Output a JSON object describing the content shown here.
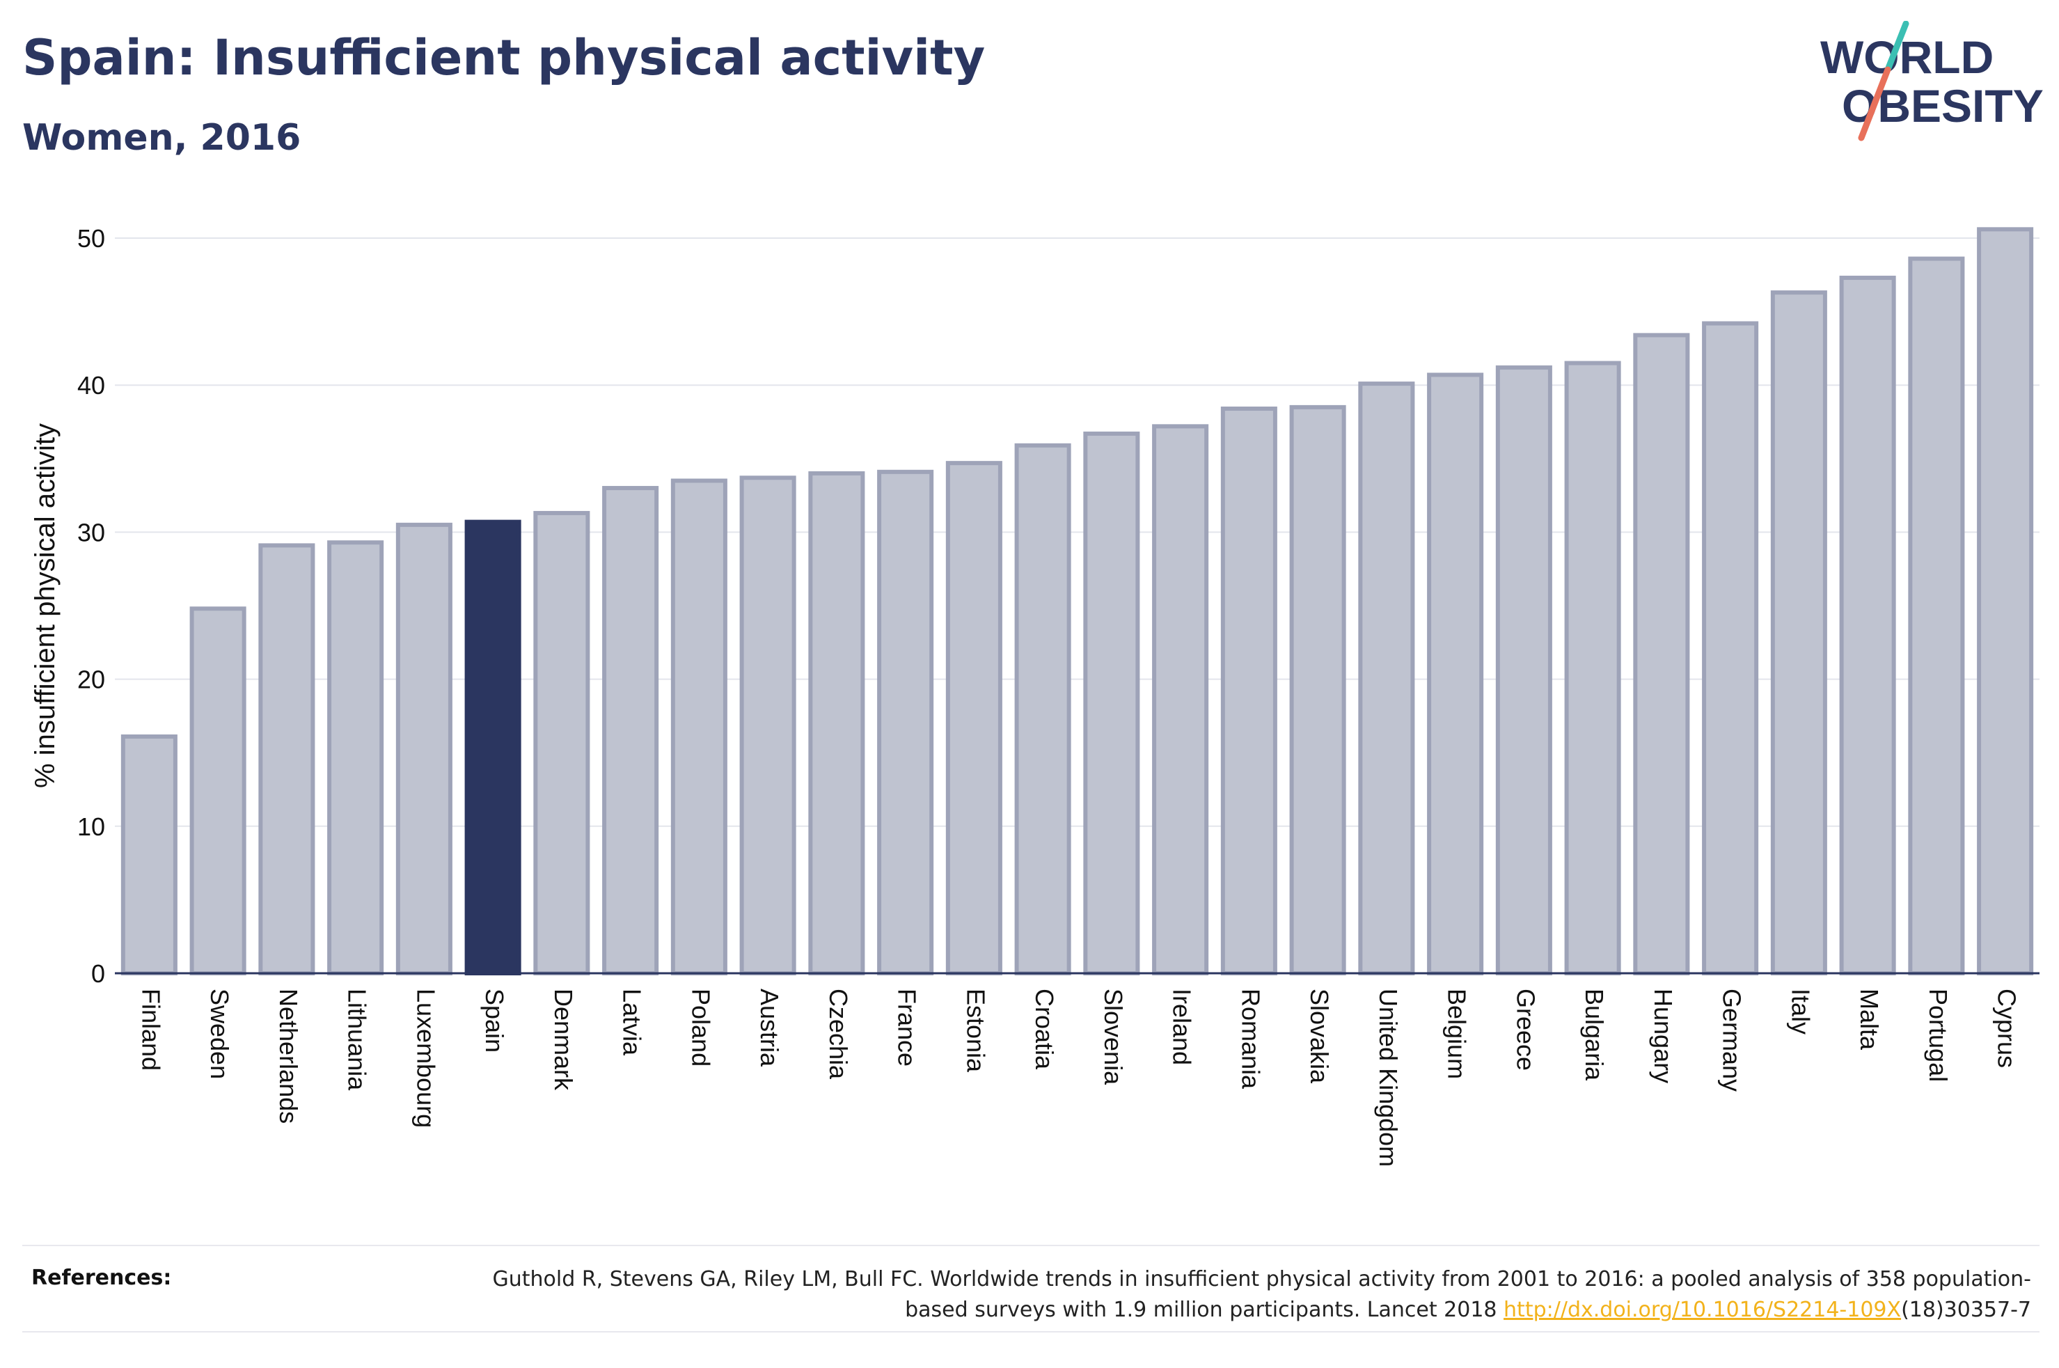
{
  "header": {
    "title": "Spain: Insufficient physical activity",
    "subtitle": "Women, 2016"
  },
  "logo": {
    "line1": "WORLD",
    "line2": "OBESITY",
    "accent_teal": "#3bbfb3",
    "accent_red": "#e8705a",
    "text_color": "#2b3660"
  },
  "chart_data": {
    "type": "bar",
    "ylabel": "% insufficient physical activity",
    "xlabel": "",
    "ylim": [
      0,
      52
    ],
    "yticks": [
      0,
      10,
      20,
      30,
      40,
      50
    ],
    "grid": true,
    "highlight": "Spain",
    "highlight_color": "#2b3660",
    "bar_color": "#bfc3d0",
    "bar_edge_color": "#9ea3b8",
    "categories": [
      "Finland",
      "Sweden",
      "Netherlands",
      "Lithuania",
      "Luxembourg",
      "Spain",
      "Denmark",
      "Latvia",
      "Poland",
      "Austria",
      "Czechia",
      "France",
      "Estonia",
      "Croatia",
      "Slovenia",
      "Ireland",
      "Romania",
      "Slovakia",
      "United Kingdom",
      "Belgium",
      "Greece",
      "Bulgaria",
      "Hungary",
      "Germany",
      "Italy",
      "Malta",
      "Portugal",
      "Cyprus"
    ],
    "values": [
      16.1,
      24.8,
      29.1,
      29.3,
      30.5,
      30.7,
      31.3,
      33.0,
      33.5,
      33.7,
      34.0,
      34.1,
      34.7,
      35.9,
      36.7,
      37.2,
      38.4,
      38.5,
      40.1,
      40.7,
      41.2,
      41.5,
      43.4,
      44.2,
      46.3,
      47.3,
      48.6,
      50.6
    ]
  },
  "references": {
    "label": "References:",
    "text_before": "Guthold R, Stevens GA, Riley LM, Bull FC. Worldwide trends in insufficient physical activity from 2001 to 2016: a pooled analysis of 358 population-based surveys with 1.9 million participants. Lancet 2018 ",
    "link": "http://dx.doi.org/10.1016/S2214-109X",
    "text_after": "(18)30357-7"
  }
}
